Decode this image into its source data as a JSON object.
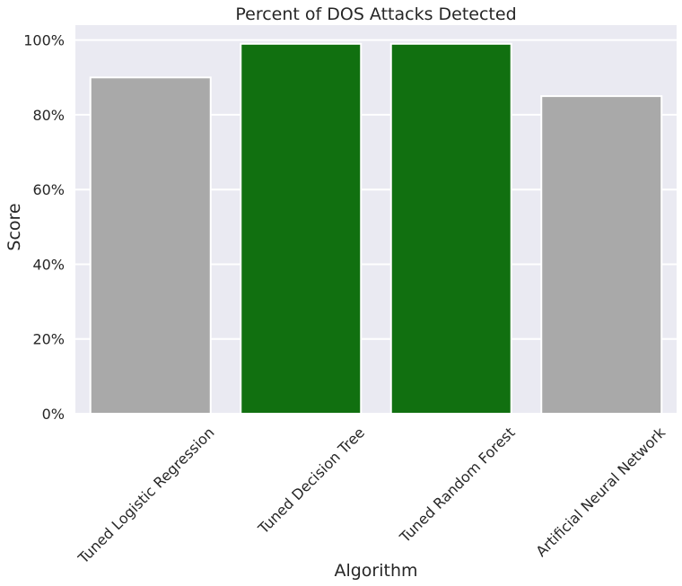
{
  "chart_data": {
    "type": "bar",
    "title": "Percent of DOS Attacks Detected",
    "xlabel": "Algorithm",
    "ylabel": "Score",
    "categories": [
      "Tuned Logistic Regression",
      "Tuned Decision Tree",
      "Tuned Random Forest",
      "Artificial Neural Network"
    ],
    "values": [
      0.9,
      0.99,
      0.99,
      0.85
    ],
    "bar_colors": [
      "#a9a9a9",
      "#117010",
      "#117010",
      "#a9a9a9"
    ],
    "ylim": [
      0,
      1.04
    ],
    "yticks": [
      0,
      0.2,
      0.4,
      0.6,
      0.8,
      1.0
    ],
    "ytick_labels": [
      "0%",
      "20%",
      "40%",
      "60%",
      "80%",
      "100%"
    ],
    "grid": true,
    "background_color": "#eaeaf2",
    "grid_color": "#ffffff"
  }
}
